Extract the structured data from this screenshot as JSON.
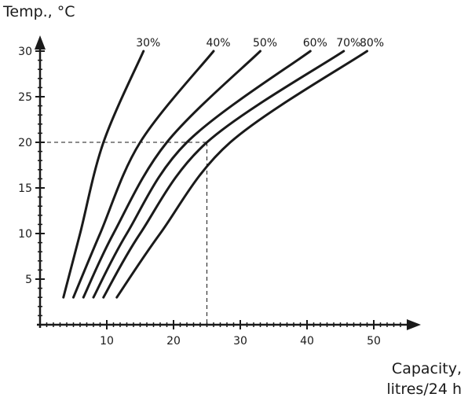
{
  "chart_data": {
    "type": "line",
    "ylabel": "Temp., °C",
    "xlabel_line1": "Capacity,",
    "xlabel_line2": "litres/24 h",
    "xlim": [
      0,
      55
    ],
    "ylim": [
      0,
      33
    ],
    "x_ticks": [
      10,
      20,
      30,
      40,
      50
    ],
    "y_ticks": [
      5,
      10,
      15,
      20,
      25,
      30
    ],
    "guide": {
      "x": 25,
      "y": 20
    },
    "series": [
      {
        "name": "30%",
        "points": [
          [
            3.5,
            3
          ],
          [
            6,
            10
          ],
          [
            9.5,
            20
          ],
          [
            15.5,
            30
          ]
        ]
      },
      {
        "name": "40%",
        "points": [
          [
            5,
            3
          ],
          [
            9,
            10
          ],
          [
            15,
            20
          ],
          [
            26,
            30
          ]
        ]
      },
      {
        "name": "50%",
        "points": [
          [
            6.5,
            3
          ],
          [
            11,
            10
          ],
          [
            19,
            20
          ],
          [
            33,
            30
          ]
        ]
      },
      {
        "name": "60%",
        "points": [
          [
            8,
            3
          ],
          [
            13,
            10
          ],
          [
            22,
            20
          ],
          [
            40.5,
            30
          ]
        ]
      },
      {
        "name": "70%",
        "points": [
          [
            9.5,
            3
          ],
          [
            15,
            10
          ],
          [
            25,
            20
          ],
          [
            45.5,
            30
          ]
        ]
      },
      {
        "name": "80%",
        "points": [
          [
            11.5,
            3
          ],
          [
            18,
            10
          ],
          [
            28.5,
            20
          ],
          [
            49,
            30
          ]
        ]
      }
    ]
  }
}
